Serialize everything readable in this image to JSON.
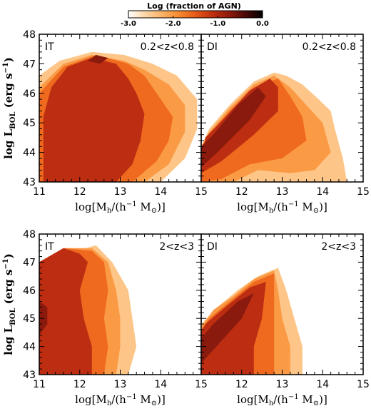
{
  "colorbar": {
    "title": "Log (fraction of AGN)",
    "ticks": [
      "-3.0",
      "-2.0",
      "-1.0",
      "0.0"
    ],
    "range": [
      -3.0,
      0.0
    ],
    "colors": [
      "#ffffff",
      "#fdd6a6",
      "#fbb368",
      "#f68a2e",
      "#e55a18",
      "#c0300e",
      "#8e1a0a",
      "#4a0808",
      "#000000"
    ]
  },
  "levels": {
    "values": [
      -3.0,
      -2.5,
      -2.0,
      -1.5,
      -1.0
    ],
    "colors": [
      "#fdc688",
      "#fb9a45",
      "#ef6a1f",
      "#bd2d12",
      "#8a1a0e"
    ],
    "peak_color": "#4d0d0a"
  },
  "chart_data": [
    {
      "type": "contour",
      "panel": "IT",
      "redshift_label": "0.2<z<0.8",
      "xlabel": "log[M_h/(h^-1 M_sun)]",
      "ylabel": "log L_BOL (erg s^-1)",
      "xlim": [
        11,
        15
      ],
      "ylim": [
        43,
        48
      ],
      "xticks": [
        "11",
        "12",
        "13",
        "14",
        "15"
      ],
      "yticks": [
        "43",
        "44",
        "45",
        "46",
        "47",
        "48"
      ],
      "contours": [
        {
          "level": -3.0,
          "polygon": [
            [
              11.0,
              43.0
            ],
            [
              14.0,
              43.0
            ],
            [
              14.6,
              43.8
            ],
            [
              14.9,
              44.8
            ],
            [
              14.9,
              45.8
            ],
            [
              14.4,
              46.6
            ],
            [
              13.8,
              47.0
            ],
            [
              13.1,
              47.3
            ],
            [
              12.3,
              47.4
            ],
            [
              11.5,
              47.1
            ],
            [
              11.0,
              46.6
            ]
          ]
        },
        {
          "level": -2.5,
          "polygon": [
            [
              11.0,
              43.0
            ],
            [
              13.6,
              43.0
            ],
            [
              14.2,
              43.6
            ],
            [
              14.6,
              44.7
            ],
            [
              14.6,
              45.6
            ],
            [
              14.2,
              46.3
            ],
            [
              13.6,
              46.8
            ],
            [
              13.1,
              47.1
            ],
            [
              12.3,
              47.3
            ],
            [
              11.6,
              47.0
            ],
            [
              11.0,
              46.2
            ]
          ]
        },
        {
          "level": -2.0,
          "polygon": [
            [
              11.0,
              43.0
            ],
            [
              13.3,
              43.0
            ],
            [
              13.9,
              43.7
            ],
            [
              14.2,
              44.4
            ],
            [
              14.3,
              45.2
            ],
            [
              13.9,
              46.0
            ],
            [
              13.6,
              46.6
            ],
            [
              13.2,
              47.0
            ],
            [
              12.4,
              47.3
            ],
            [
              11.6,
              46.9
            ],
            [
              11.0,
              46.0
            ]
          ]
        },
        {
          "level": -1.5,
          "polygon": [
            [
              11.1,
              43.0
            ],
            [
              12.9,
              43.0
            ],
            [
              13.3,
              43.6
            ],
            [
              13.5,
              44.4
            ],
            [
              13.6,
              45.3
            ],
            [
              13.4,
              46.0
            ],
            [
              13.2,
              46.5
            ],
            [
              12.9,
              47.0
            ],
            [
              12.3,
              47.2
            ],
            [
              11.7,
              46.9
            ],
            [
              11.3,
              46.2
            ],
            [
              11.1,
              45.2
            ]
          ]
        },
        {
          "level": -1.0,
          "polygon": [
            [
              12.2,
              47.1
            ],
            [
              12.4,
              47.3
            ],
            [
              12.7,
              47.2
            ],
            [
              12.5,
              47.0
            ]
          ]
        }
      ]
    },
    {
      "type": "contour",
      "panel": "DI",
      "redshift_label": "0.2<z<0.8",
      "xlabel": "log[M_h/(h^-1 M_sun)]",
      "ylabel": "log L_BOL (erg s^-1)",
      "xlim": [
        11,
        15
      ],
      "ylim": [
        43,
        48
      ],
      "xticks": [
        "12",
        "13",
        "14",
        "15"
      ],
      "yticks": [
        "43",
        "44",
        "45",
        "46",
        "47",
        "48"
      ],
      "contours": [
        {
          "level": -3.0,
          "polygon": [
            [
              11.0,
              43.0
            ],
            [
              14.6,
              43.0
            ],
            [
              14.5,
              43.8
            ],
            [
              14.3,
              44.8
            ],
            [
              14.2,
              45.4
            ],
            [
              13.9,
              45.8
            ],
            [
              13.5,
              46.3
            ],
            [
              13.1,
              46.6
            ],
            [
              12.8,
              46.7
            ],
            [
              12.3,
              46.4
            ],
            [
              11.7,
              45.6
            ],
            [
              11.2,
              44.8
            ],
            [
              11.0,
              44.2
            ]
          ]
        },
        {
          "level": -2.5,
          "polygon": [
            [
              11.0,
              43.0
            ],
            [
              11.8,
              43.0
            ],
            [
              12.4,
              43.4
            ],
            [
              13.2,
              43.3
            ],
            [
              13.8,
              43.4
            ],
            [
              14.2,
              44.0
            ],
            [
              14.0,
              45.0
            ],
            [
              13.6,
              45.6
            ],
            [
              13.2,
              46.2
            ],
            [
              12.8,
              46.6
            ],
            [
              12.3,
              46.3
            ],
            [
              11.7,
              45.5
            ],
            [
              11.2,
              44.7
            ],
            [
              11.0,
              44.2
            ]
          ]
        },
        {
          "level": -2.0,
          "polygon": [
            [
              11.0,
              43.0
            ],
            [
              11.5,
              43.1
            ],
            [
              12.2,
              43.6
            ],
            [
              13.0,
              43.8
            ],
            [
              13.6,
              44.4
            ],
            [
              13.5,
              45.2
            ],
            [
              13.2,
              45.9
            ],
            [
              12.9,
              46.5
            ],
            [
              12.3,
              46.2
            ],
            [
              11.7,
              45.4
            ],
            [
              11.2,
              44.6
            ],
            [
              11.0,
              44.2
            ]
          ]
        },
        {
          "level": -1.5,
          "polygon": [
            [
              11.0,
              43.3
            ],
            [
              11.5,
              43.7
            ],
            [
              12.3,
              44.6
            ],
            [
              12.9,
              45.4
            ],
            [
              12.9,
              46.2
            ],
            [
              12.7,
              46.5
            ],
            [
              12.2,
              46.1
            ],
            [
              11.6,
              45.2
            ],
            [
              11.1,
              44.5
            ]
          ]
        },
        {
          "level": -1.0,
          "polygon": [
            [
              11.0,
              43.5
            ],
            [
              11.4,
              44.0
            ],
            [
              12.2,
              45.1
            ],
            [
              12.6,
              45.9
            ],
            [
              12.4,
              46.2
            ],
            [
              11.9,
              45.6
            ],
            [
              11.3,
              44.6
            ],
            [
              11.0,
              44.2
            ]
          ]
        }
      ]
    },
    {
      "type": "contour",
      "panel": "IT",
      "redshift_label": "2<z<3",
      "xlabel": "log[M_h/(h^-1 M_sun)]",
      "ylabel": "log L_BOL (erg s^-1)",
      "xlim": [
        11,
        15
      ],
      "ylim": [
        43,
        48
      ],
      "xticks": [
        "11",
        "12",
        "13",
        "14",
        "15"
      ],
      "yticks": [
        "43",
        "44",
        "45",
        "46",
        "47",
        "48"
      ],
      "contours": [
        {
          "level": -3.0,
          "polygon": [
            [
              11.0,
              43.0
            ],
            [
              13.2,
              43.0
            ],
            [
              13.4,
              44.0
            ],
            [
              13.3,
              45.0
            ],
            [
              13.2,
              46.0
            ],
            [
              12.8,
              47.0
            ],
            [
              12.4,
              47.6
            ],
            [
              11.9,
              47.4
            ],
            [
              11.6,
              47.5
            ],
            [
              11.0,
              47.0
            ]
          ]
        },
        {
          "level": -2.5,
          "polygon": [
            [
              11.0,
              43.0
            ],
            [
              12.9,
              43.0
            ],
            [
              13.0,
              44.0
            ],
            [
              13.0,
              45.0
            ],
            [
              12.9,
              46.0
            ],
            [
              12.7,
              47.0
            ],
            [
              12.3,
              47.5
            ],
            [
              11.6,
              47.5
            ],
            [
              11.0,
              47.0
            ]
          ]
        },
        {
          "level": -2.0,
          "polygon": [
            [
              11.0,
              43.0
            ],
            [
              12.6,
              43.0
            ],
            [
              12.7,
              44.0
            ],
            [
              12.6,
              45.0
            ],
            [
              12.7,
              46.0
            ],
            [
              12.6,
              47.0
            ],
            [
              12.3,
              47.4
            ],
            [
              11.6,
              47.5
            ],
            [
              11.0,
              47.0
            ]
          ]
        },
        {
          "level": -1.5,
          "polygon": [
            [
              11.0,
              43.0
            ],
            [
              12.3,
              43.0
            ],
            [
              12.3,
              44.0
            ],
            [
              12.1,
              45.0
            ],
            [
              12.0,
              46.0
            ],
            [
              12.2,
              47.0
            ],
            [
              12.0,
              47.3
            ],
            [
              11.6,
              47.5
            ],
            [
              11.0,
              47.0
            ]
          ]
        },
        {
          "level": -1.0,
          "polygon": [
            [
              11.0,
              44.4
            ],
            [
              11.2,
              44.8
            ],
            [
              11.2,
              45.4
            ],
            [
              11.0,
              45.6
            ]
          ]
        }
      ]
    },
    {
      "type": "contour",
      "panel": "DI",
      "redshift_label": "2<z<3",
      "xlabel": "log[M_h/(h^-1 M_sun)]",
      "ylabel": "log L_BOL (erg s^-1)",
      "xlim": [
        11,
        15
      ],
      "ylim": [
        43,
        48
      ],
      "xticks": [
        "12",
        "13",
        "14",
        "15"
      ],
      "yticks": [
        "43",
        "44",
        "45",
        "46",
        "47",
        "48"
      ],
      "contours": [
        {
          "level": -3.0,
          "polygon": [
            [
              11.0,
              43.0
            ],
            [
              13.5,
              43.0
            ],
            [
              13.5,
              44.0
            ],
            [
              13.3,
              45.0
            ],
            [
              13.1,
              46.0
            ],
            [
              12.9,
              46.8
            ],
            [
              12.4,
              46.5
            ],
            [
              11.9,
              46.0
            ],
            [
              11.4,
              45.4
            ],
            [
              11.0,
              44.8
            ]
          ]
        },
        {
          "level": -2.5,
          "polygon": [
            [
              11.0,
              43.0
            ],
            [
              13.2,
              43.0
            ],
            [
              13.2,
              44.0
            ],
            [
              13.0,
              45.0
            ],
            [
              12.9,
              46.0
            ],
            [
              12.8,
              46.7
            ],
            [
              12.3,
              46.4
            ],
            [
              11.8,
              45.8
            ],
            [
              11.3,
              45.3
            ],
            [
              11.0,
              44.7
            ]
          ]
        },
        {
          "level": -2.0,
          "polygon": [
            [
              11.0,
              43.0
            ],
            [
              12.8,
              43.0
            ],
            [
              12.8,
              44.0
            ],
            [
              12.8,
              45.0
            ],
            [
              12.8,
              46.6
            ],
            [
              12.3,
              46.3
            ],
            [
              11.7,
              45.6
            ],
            [
              11.2,
              45.0
            ],
            [
              11.0,
              44.6
            ]
          ]
        },
        {
          "level": -1.5,
          "polygon": [
            [
              11.0,
              43.0
            ],
            [
              12.3,
              43.0
            ],
            [
              12.3,
              44.0
            ],
            [
              12.5,
              45.0
            ],
            [
              12.6,
              46.3
            ],
            [
              12.2,
              46.1
            ],
            [
              11.6,
              45.4
            ],
            [
              11.1,
              44.8
            ],
            [
              11.0,
              44.5
            ]
          ]
        },
        {
          "level": -1.0,
          "polygon": [
            [
              11.0,
              43.4
            ],
            [
              11.5,
              44.2
            ],
            [
              12.0,
              45.0
            ],
            [
              12.3,
              45.9
            ],
            [
              11.9,
              45.6
            ],
            [
              11.3,
              44.8
            ],
            [
              11.0,
              44.3
            ]
          ]
        }
      ]
    }
  ]
}
